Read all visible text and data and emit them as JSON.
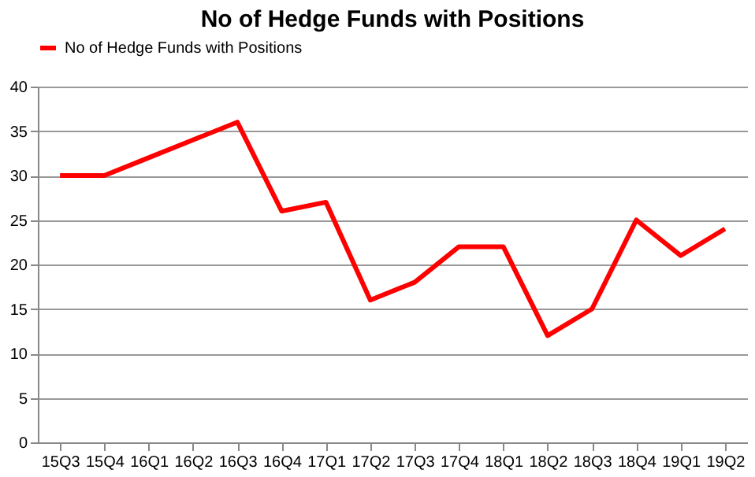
{
  "chart_data": {
    "type": "line",
    "title": "No of Hedge Funds with Positions",
    "categories": [
      "15Q3",
      "15Q4",
      "16Q1",
      "16Q2",
      "16Q3",
      "16Q4",
      "17Q1",
      "17Q2",
      "17Q3",
      "17Q4",
      "18Q1",
      "18Q2",
      "18Q3",
      "18Q4",
      "19Q1",
      "19Q2"
    ],
    "series": [
      {
        "name": "No of Hedge Funds with Positions",
        "color": "#ff0000",
        "values": [
          30,
          30,
          32,
          34,
          36,
          26,
          27,
          16,
          18,
          22,
          22,
          12,
          15,
          25,
          21,
          24
        ]
      }
    ],
    "ylim": [
      0,
      40
    ],
    "yticks": [
      0,
      5,
      10,
      15,
      20,
      25,
      30,
      35,
      40
    ],
    "grid": "y",
    "legend": "top",
    "marker": "none",
    "line_style": "solid"
  }
}
